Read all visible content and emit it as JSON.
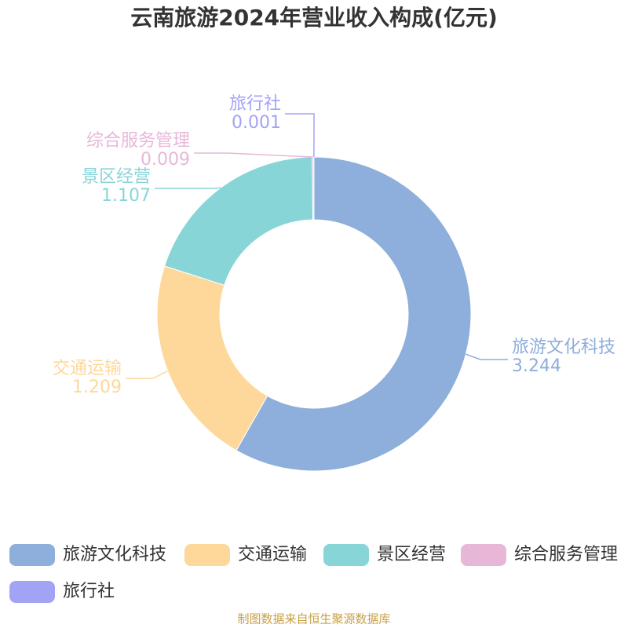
{
  "chart_data": {
    "type": "pie",
    "donut": true,
    "title": "云南旅游2024年营业收入构成(亿元)",
    "categories": [
      "旅游文化科技",
      "交通运输",
      "景区经营",
      "综合服务管理",
      "旅行社"
    ],
    "values": [
      3.244,
      1.209,
      1.107,
      0.009,
      0.001
    ],
    "colors": [
      "#8eaedb",
      "#fdd89a",
      "#88d5d8",
      "#e8b7d8",
      "#a3a3f5"
    ],
    "legend": "bottom",
    "source": "制图数据来自恒生聚源数据库"
  }
}
